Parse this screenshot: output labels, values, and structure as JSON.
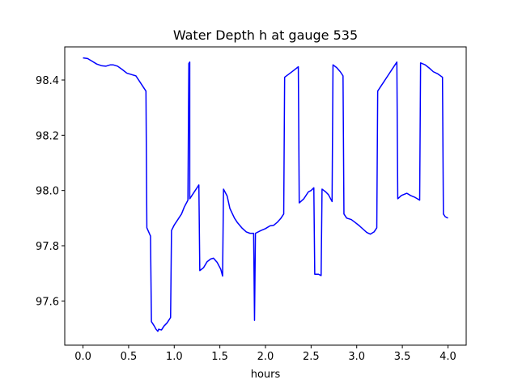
{
  "chart_data": {
    "type": "line",
    "title": "Water Depth h at gauge 535",
    "xlabel": "hours",
    "ylabel": "",
    "xlim": [
      -0.2,
      4.2
    ],
    "ylim": [
      97.44,
      98.52
    ],
    "x_ticks": [
      0.0,
      0.5,
      1.0,
      1.5,
      2.0,
      2.5,
      3.0,
      3.5,
      4.0
    ],
    "x_tick_labels": [
      "0.0",
      "0.5",
      "1.0",
      "1.5",
      "2.0",
      "2.5",
      "3.0",
      "3.5",
      "4.0"
    ],
    "y_ticks": [
      97.6,
      97.8,
      98.0,
      98.2,
      98.4
    ],
    "y_tick_labels": [
      "97.6",
      "97.8",
      "98.0",
      "98.2",
      "98.4"
    ],
    "grid": false,
    "series": [
      {
        "color": "#0000ff",
        "points": [
          [
            0.0,
            98.48
          ],
          [
            0.05,
            98.478
          ],
          [
            0.1,
            98.468
          ],
          [
            0.15,
            98.458
          ],
          [
            0.2,
            98.452
          ],
          [
            0.25,
            98.45
          ],
          [
            0.3,
            98.455
          ],
          [
            0.33,
            98.455
          ],
          [
            0.38,
            98.45
          ],
          [
            0.43,
            98.438
          ],
          [
            0.48,
            98.425
          ],
          [
            0.53,
            98.42
          ],
          [
            0.58,
            98.415
          ],
          [
            0.62,
            98.395
          ],
          [
            0.66,
            98.375
          ],
          [
            0.69,
            98.36
          ],
          [
            0.7,
            97.865
          ],
          [
            0.74,
            97.835
          ],
          [
            0.75,
            97.525
          ],
          [
            0.78,
            97.51
          ],
          [
            0.8,
            97.498
          ],
          [
            0.82,
            97.49
          ],
          [
            0.83,
            97.498
          ],
          [
            0.86,
            97.495
          ],
          [
            0.89,
            97.51
          ],
          [
            0.92,
            97.52
          ],
          [
            0.96,
            97.54
          ],
          [
            0.97,
            97.855
          ],
          [
            1.0,
            97.875
          ],
          [
            1.04,
            97.895
          ],
          [
            1.08,
            97.915
          ],
          [
            1.11,
            97.94
          ],
          [
            1.15,
            97.965
          ],
          [
            1.16,
            98.46
          ],
          [
            1.17,
            98.465
          ],
          [
            1.17,
            97.97
          ],
          [
            1.2,
            97.985
          ],
          [
            1.24,
            98.005
          ],
          [
            1.27,
            98.02
          ],
          [
            1.28,
            97.71
          ],
          [
            1.32,
            97.72
          ],
          [
            1.36,
            97.742
          ],
          [
            1.4,
            97.752
          ],
          [
            1.43,
            97.755
          ],
          [
            1.47,
            97.74
          ],
          [
            1.51,
            97.715
          ],
          [
            1.53,
            97.69
          ],
          [
            1.54,
            98.005
          ],
          [
            1.58,
            97.98
          ],
          [
            1.61,
            97.935
          ],
          [
            1.66,
            97.9
          ],
          [
            1.69,
            97.885
          ],
          [
            1.74,
            97.865
          ],
          [
            1.79,
            97.85
          ],
          [
            1.83,
            97.845
          ],
          [
            1.87,
            97.845
          ],
          [
            1.88,
            97.53
          ],
          [
            1.89,
            97.845
          ],
          [
            1.95,
            97.855
          ],
          [
            2.0,
            97.862
          ],
          [
            2.05,
            97.872
          ],
          [
            2.09,
            97.874
          ],
          [
            2.13,
            97.885
          ],
          [
            2.17,
            97.9
          ],
          [
            2.2,
            97.915
          ],
          [
            2.21,
            98.41
          ],
          [
            2.25,
            98.42
          ],
          [
            2.31,
            98.435
          ],
          [
            2.36,
            98.448
          ],
          [
            2.37,
            97.955
          ],
          [
            2.42,
            97.97
          ],
          [
            2.47,
            97.995
          ],
          [
            2.5,
            98.0
          ],
          [
            2.53,
            98.01
          ],
          [
            2.54,
            97.697
          ],
          [
            2.58,
            97.697
          ],
          [
            2.61,
            97.692
          ],
          [
            2.62,
            98.005
          ],
          [
            2.66,
            97.995
          ],
          [
            2.69,
            97.985
          ],
          [
            2.73,
            97.96
          ],
          [
            2.74,
            98.455
          ],
          [
            2.78,
            98.445
          ],
          [
            2.82,
            98.43
          ],
          [
            2.85,
            98.415
          ],
          [
            2.86,
            97.915
          ],
          [
            2.89,
            97.9
          ],
          [
            2.94,
            97.895
          ],
          [
            2.98,
            97.885
          ],
          [
            3.03,
            97.872
          ],
          [
            3.07,
            97.86
          ],
          [
            3.11,
            97.848
          ],
          [
            3.15,
            97.842
          ],
          [
            3.19,
            97.85
          ],
          [
            3.22,
            97.865
          ],
          [
            3.23,
            98.36
          ],
          [
            3.29,
            98.39
          ],
          [
            3.34,
            98.415
          ],
          [
            3.39,
            98.44
          ],
          [
            3.44,
            98.465
          ],
          [
            3.45,
            97.97
          ],
          [
            3.49,
            97.982
          ],
          [
            3.55,
            97.99
          ],
          [
            3.59,
            97.982
          ],
          [
            3.64,
            97.975
          ],
          [
            3.69,
            97.965
          ],
          [
            3.7,
            98.462
          ],
          [
            3.75,
            98.455
          ],
          [
            3.8,
            98.442
          ],
          [
            3.84,
            98.43
          ],
          [
            3.89,
            98.422
          ],
          [
            3.94,
            98.41
          ],
          [
            3.95,
            97.915
          ],
          [
            3.97,
            97.905
          ],
          [
            4.0,
            97.9
          ]
        ]
      }
    ]
  }
}
